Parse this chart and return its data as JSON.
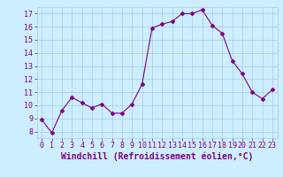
{
  "x": [
    0,
    1,
    2,
    3,
    4,
    5,
    6,
    7,
    8,
    9,
    10,
    11,
    12,
    13,
    14,
    15,
    16,
    17,
    18,
    19,
    20,
    21,
    22,
    23
  ],
  "y": [
    8.9,
    7.9,
    9.6,
    10.6,
    10.2,
    9.8,
    10.1,
    9.4,
    9.4,
    10.1,
    11.6,
    15.9,
    16.2,
    16.4,
    17.0,
    17.0,
    17.3,
    16.1,
    15.5,
    13.4,
    12.4,
    11.0,
    10.5,
    11.2
  ],
  "line_color": "#800080",
  "marker": "D",
  "markersize": 2,
  "linewidth": 0.8,
  "xlabel": "Windchill (Refroidissement éolien,°C)",
  "xlabel_color": "#800080",
  "xlabel_fontsize": 7,
  "bg_color": "#cceeff",
  "grid_color": "#aaccdd",
  "tick_label_color": "#800080",
  "tick_fontsize": 6,
  "ylim": [
    7.5,
    17.5
  ],
  "xlim": [
    -0.5,
    23.5
  ],
  "yticks": [
    8,
    9,
    10,
    11,
    12,
    13,
    14,
    15,
    16,
    17
  ],
  "xticks": [
    0,
    1,
    2,
    3,
    4,
    5,
    6,
    7,
    8,
    9,
    10,
    11,
    12,
    13,
    14,
    15,
    16,
    17,
    18,
    19,
    20,
    21,
    22,
    23
  ]
}
